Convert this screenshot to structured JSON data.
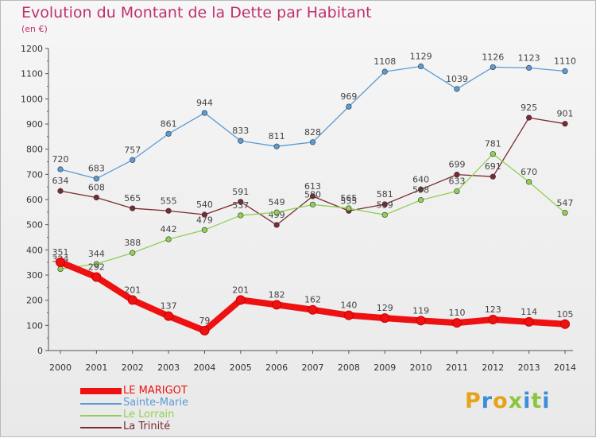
{
  "chart_data": {
    "type": "line",
    "title": "Evolution du Montant de la Dette par Habitant",
    "unit_label": "(en €)",
    "ylim": [
      0,
      1200
    ],
    "yticks": [
      0,
      100,
      200,
      300,
      400,
      500,
      600,
      700,
      800,
      900,
      1000,
      1100,
      1200
    ],
    "x": [
      "2000",
      "2001",
      "2002",
      "2003",
      "2004",
      "2005",
      "2006",
      "2007",
      "2008",
      "2009",
      "2010",
      "2011",
      "2012",
      "2013",
      "2014"
    ],
    "grid": false,
    "legend_position": "bottom-left",
    "series": [
      {
        "name": "Sainte-Marie",
        "color": "#5b9bd5",
        "values": [
          720,
          683,
          757,
          861,
          944,
          833,
          811,
          828,
          969,
          1108,
          1129,
          1039,
          1126,
          1123,
          1110
        ]
      },
      {
        "name": "La Trinité",
        "color": "#7b2a32",
        "values": [
          634,
          608,
          565,
          555,
          540,
          591,
          499,
          613,
          555,
          581,
          640,
          699,
          691,
          925,
          901
        ]
      },
      {
        "name": "Le Lorrain",
        "color": "#8fd152",
        "values": [
          324,
          344,
          388,
          442,
          479,
          537,
          549,
          580,
          565,
          539,
          598,
          633,
          781,
          670,
          547
        ]
      },
      {
        "name": "LE MARIGOT",
        "color": "#ee1111",
        "values": [
          351,
          292,
          201,
          137,
          79,
          201,
          182,
          162,
          140,
          129,
          119,
          110,
          123,
          114,
          105
        ]
      }
    ],
    "legend_order": [
      "LE MARIGOT",
      "Sainte-Marie",
      "Le Lorrain",
      "La Trinité"
    ]
  },
  "brand": {
    "text": "Proxiti",
    "colors": [
      "#e8a21a",
      "#3a8fd6",
      "#e8a21a",
      "#8cc63f",
      "#3a8fd6",
      "#8cc63f",
      "#3a8fd6"
    ]
  }
}
